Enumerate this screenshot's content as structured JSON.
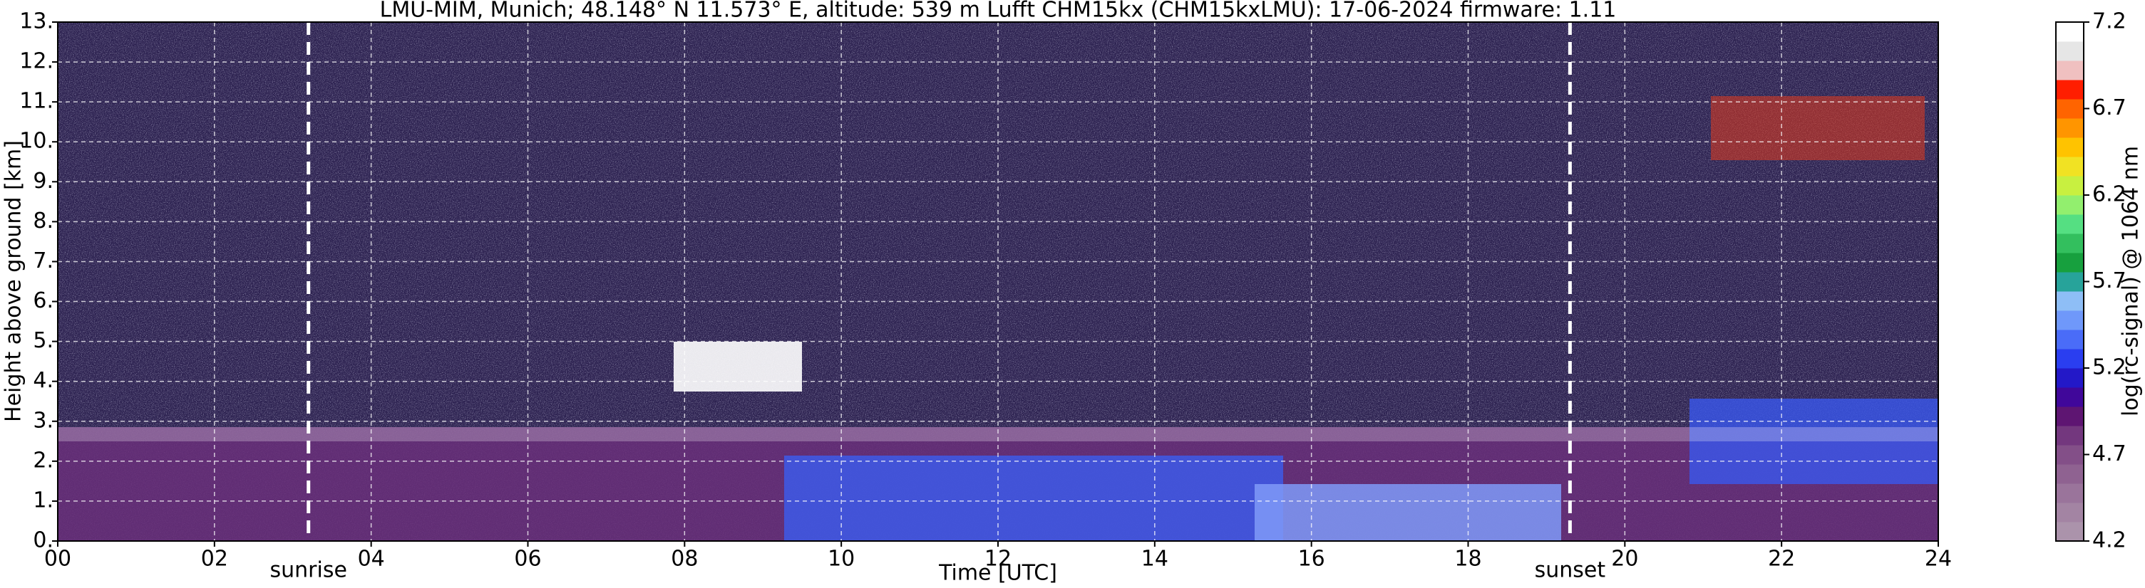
{
  "chart_data": {
    "type": "heatmap",
    "title": "LMU-MIM, Munich; 48.148° N 11.573° E, altitude: 539 m    Lufft CHM15kx (CHM15kxLMU): 17-06-2024    firmware: 1.11",
    "xlabel": "Time [UTC]",
    "ylabel": "Height above ground [km]",
    "xlim": [
      0,
      24
    ],
    "xticks": [
      {
        "value": 0,
        "label": "00"
      },
      {
        "value": 2,
        "label": "02"
      },
      {
        "value": 4,
        "label": "04"
      },
      {
        "value": 6,
        "label": "06"
      },
      {
        "value": 8,
        "label": "08"
      },
      {
        "value": 10,
        "label": "10"
      },
      {
        "value": 12,
        "label": "12"
      },
      {
        "value": 14,
        "label": "14"
      },
      {
        "value": 16,
        "label": "16"
      },
      {
        "value": 18,
        "label": "18"
      },
      {
        "value": 20,
        "label": "20"
      },
      {
        "value": 22,
        "label": "22"
      },
      {
        "value": 24,
        "label": "24"
      }
    ],
    "ylim": [
      0,
      13
    ],
    "yticks": [
      {
        "value": 0,
        "label": "0."
      },
      {
        "value": 1,
        "label": "1."
      },
      {
        "value": 2,
        "label": "2."
      },
      {
        "value": 3,
        "label": "3."
      },
      {
        "value": 4,
        "label": "4."
      },
      {
        "value": 5,
        "label": "5."
      },
      {
        "value": 6,
        "label": "6."
      },
      {
        "value": 7,
        "label": "7."
      },
      {
        "value": 8,
        "label": "8."
      },
      {
        "value": 9,
        "label": "9."
      },
      {
        "value": 10,
        "label": "10."
      },
      {
        "value": 11,
        "label": "11."
      },
      {
        "value": 12,
        "label": "12."
      },
      {
        "value": 13,
        "label": "13."
      }
    ],
    "grid": true,
    "annotations": [
      {
        "text": "sunrise",
        "x": 3.2
      },
      {
        "text": "sunset",
        "x": 19.3
      }
    ],
    "colorbar": {
      "label": "log(rc-signal) @ 1064 nm",
      "lim": [
        4.2,
        7.2
      ],
      "ticks": [
        4.2,
        4.7,
        5.2,
        5.7,
        6.2,
        6.7,
        7.2
      ],
      "colors": [
        "#ab93ab",
        "#a384a3",
        "#9a749b",
        "#8f6291",
        "#834f88",
        "#73377e",
        "#5e1572",
        "#40079a",
        "#2318c8",
        "#2a3ef0",
        "#4a6cf8",
        "#6f98fa",
        "#8ebef6",
        "#27a39a",
        "#17a03e",
        "#33bf5e",
        "#55df82",
        "#92ef6e",
        "#c8f040",
        "#f1e223",
        "#ffc300",
        "#ff9500",
        "#ff6400",
        "#ff1e00",
        "#f0c0c0",
        "#e6e6e6",
        "#ffffff"
      ]
    }
  }
}
